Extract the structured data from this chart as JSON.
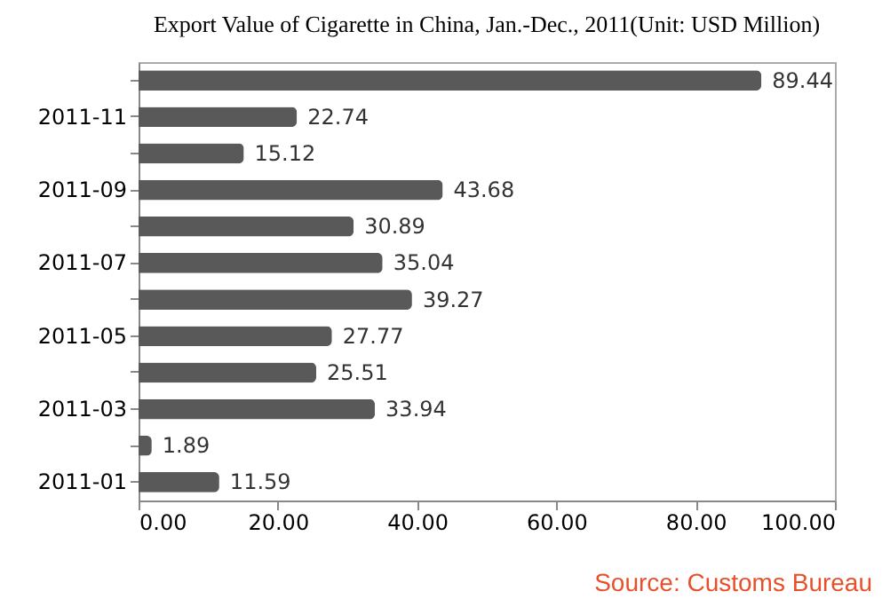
{
  "chart_data": {
    "type": "bar",
    "orientation": "horizontal",
    "title": "Export Value of Cigarette in China, Jan.-Dec., 2011(Unit: USD Million)",
    "categories": [
      null,
      "2011-11",
      null,
      "2011-09",
      null,
      "2011-07",
      null,
      "2011-05",
      null,
      "2011-03",
      null,
      "2011-01"
    ],
    "values": [
      89.44,
      22.74,
      15.12,
      43.68,
      30.89,
      35.04,
      39.27,
      27.77,
      25.51,
      33.94,
      1.89,
      11.59
    ],
    "color": "#595959",
    "xlim": [
      0,
      100
    ],
    "xticks": [
      {
        "value": 0,
        "label": "0.00"
      },
      {
        "value": 20,
        "label": "20.00"
      },
      {
        "value": 40,
        "label": "40.00"
      },
      {
        "value": 60,
        "label": "60.00"
      },
      {
        "value": 80,
        "label": "80.00"
      },
      {
        "value": 100,
        "label": "100.00"
      }
    ],
    "data_labels": true,
    "grid": false,
    "annotations": [
      "Source: Customs Bureau"
    ]
  }
}
